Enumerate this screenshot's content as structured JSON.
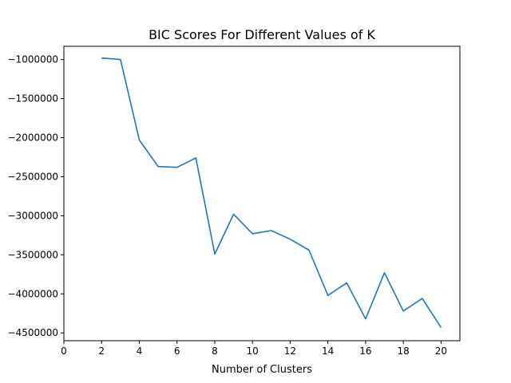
{
  "chart_data": {
    "type": "line",
    "title": "BIC Scores For Different Values of K",
    "xlabel": "Number of Clusters",
    "ylabel": "",
    "xlim": [
      0,
      21
    ],
    "ylim": [
      -4600000,
      -830000
    ],
    "xticks": [
      0,
      2,
      4,
      6,
      8,
      10,
      12,
      14,
      16,
      18,
      20
    ],
    "yticks": [
      -1000000,
      -1500000,
      -2000000,
      -2500000,
      -3000000,
      -3500000,
      -4000000,
      -4500000
    ],
    "grid": false,
    "series": [
      {
        "color": "#1f77b4",
        "x": [
          2,
          3,
          4,
          5,
          6,
          7,
          8,
          9,
          10,
          11,
          12,
          13,
          14,
          15,
          16,
          17,
          18,
          19,
          20
        ],
        "y": [
          -980000,
          -1000000,
          -2030000,
          -2370000,
          -2380000,
          -2260000,
          -3490000,
          -2980000,
          -3230000,
          -3190000,
          -3300000,
          -3440000,
          -4020000,
          -3860000,
          -4320000,
          -3730000,
          -4220000,
          -4060000,
          -4430000
        ]
      }
    ]
  }
}
